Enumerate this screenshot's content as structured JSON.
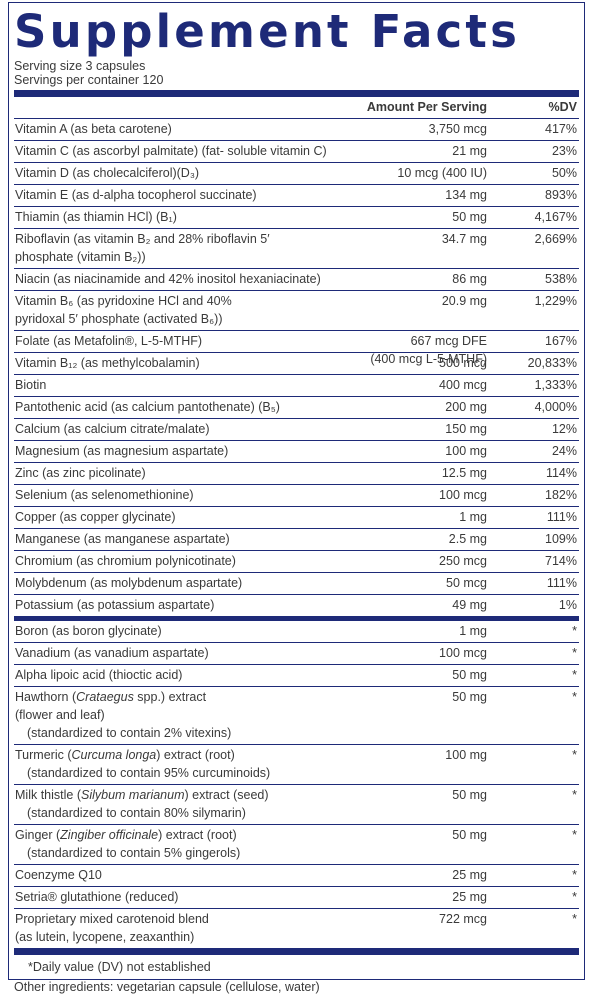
{
  "title": "Supplement Facts",
  "serving": [
    "Serving size  3 capsules",
    "Servings per container  120"
  ],
  "table": {
    "header": [
      "Amount Per Serving",
      "%DV"
    ],
    "groups": [
      [
        {
          "name": [
            "Vitamin A (as beta carotene)"
          ],
          "amount": "3,750 mcg",
          "dv": "417%"
        },
        {
          "name": [
            "Vitamin C (as ascorbyl palmitate) (fat- soluble vitamin C)"
          ],
          "amount": "21 mg",
          "dv": "23%"
        },
        {
          "name": [
            "Vitamin D (as cholecalciferol)(D₃)"
          ],
          "amount": "10 mcg (400 IU)",
          "dv": "50%"
        },
        {
          "name": [
            "Vitamin E (as d-alpha tocopherol succinate)"
          ],
          "amount": "134 mg",
          "dv": "893%"
        },
        {
          "name": [
            "Thiamin (as thiamin HCl) (B₁)"
          ],
          "amount": "50 mg",
          "dv": "4,167%"
        },
        {
          "name": [
            "Riboflavin (as vitamin B₂ and 28% riboflavin 5′",
            "phosphate (vitamin B₂))"
          ],
          "amount": "34.7 mg",
          "dv": "2,669%"
        },
        {
          "name": [
            "Niacin (as niacinamide and 42% inositol hexaniacinate)"
          ],
          "amount": "86 mg",
          "dv": "538%"
        },
        {
          "name": [
            "Vitamin B₆ (as pyridoxine HCl and 40%",
            "pyridoxal 5′ phosphate (activated B₆))"
          ],
          "amount": "20.9 mg",
          "dv": "1,229%"
        },
        {
          "name": [
            "Folate (as Metafolin®, L-5-MTHF)"
          ],
          "amount": [
            "667 mcg DFE",
            "(400 mcg L-5-MTHF)"
          ],
          "dv": "167%"
        },
        {
          "name": [
            "Vitamin B₁₂ (as methylcobalamin)"
          ],
          "amount": "500 mcg",
          "dv": "20,833%"
        },
        {
          "name": [
            "Biotin"
          ],
          "amount": "400 mcg",
          "dv": "1,333%"
        },
        {
          "name": [
            "Pantothenic acid (as calcium pantothenate) (B₅)"
          ],
          "amount": "200 mg",
          "dv": "4,000%"
        },
        {
          "name": [
            "Calcium (as calcium citrate/malate)"
          ],
          "amount": "150 mg",
          "dv": "12%"
        },
        {
          "name": [
            "Magnesium (as magnesium aspartate)"
          ],
          "amount": "100 mg",
          "dv": "24%"
        },
        {
          "name": [
            "Zinc (as zinc picolinate)"
          ],
          "amount": "12.5 mg",
          "dv": "114%"
        },
        {
          "name": [
            "Selenium (as selenomethionine)"
          ],
          "amount": "100 mcg",
          "dv": "182%"
        },
        {
          "name": [
            "Copper (as copper glycinate)"
          ],
          "amount": "1 mg",
          "dv": "111%"
        },
        {
          "name": [
            "Manganese (as manganese aspartate)"
          ],
          "amount": "2.5 mg",
          "dv": "109%"
        },
        {
          "name": [
            "Chromium (as chromium polynicotinate)"
          ],
          "amount": "250 mcg",
          "dv": "714%"
        },
        {
          "name": [
            "Molybdenum (as molybdenum aspartate)"
          ],
          "amount": "50 mcg",
          "dv": "111%"
        },
        {
          "name": [
            "Potassium (as potassium aspartate)"
          ],
          "amount": "49 mg",
          "dv": "1%"
        }
      ],
      [
        {
          "name": [
            "Boron (as boron glycinate)"
          ],
          "amount": "1 mg",
          "dv": "*"
        },
        {
          "name": [
            "Vanadium (as vanadium aspartate)"
          ],
          "amount": "100 mcg",
          "dv": "*"
        },
        {
          "name": [
            "Alpha lipoic acid (thioctic acid)"
          ],
          "amount": "50 mg",
          "dv": "*"
        },
        {
          "name": [
            [
              "Hawthorn (",
              {
                "text": "Crataegus",
                "italic": true
              },
              " spp.) extract"
            ],
            "(flower and leaf)",
            {
              "text": "(standardized to contain 2% vitexins)",
              "indent": true
            }
          ],
          "amount": "50 mg",
          "dv": "*"
        },
        {
          "name": [
            [
              "Turmeric (",
              {
                "text": "Curcuma longa",
                "italic": true
              },
              ") extract (root)"
            ],
            {
              "text": "(standardized to contain 95% curcuminoids)",
              "indent": true
            }
          ],
          "amount": "100 mg",
          "dv": "*"
        },
        {
          "name": [
            [
              "Milk thistle (",
              {
                "text": "Silybum marianum",
                "italic": true
              },
              ") extract (seed)"
            ],
            {
              "text": "(standardized to contain 80% silymarin)",
              "indent": true
            }
          ],
          "amount": "50 mg",
          "dv": "*"
        },
        {
          "name": [
            [
              "Ginger (",
              {
                "text": "Zingiber officinale",
                "italic": true
              },
              ") extract (root)"
            ],
            {
              "text": "(standardized to contain 5% gingerols)",
              "indent": true
            }
          ],
          "amount": "50 mg",
          "dv": "*"
        },
        {
          "name": [
            "Coenzyme Q10"
          ],
          "amount": "25 mg",
          "dv": "*"
        },
        {
          "name": [
            "Setria® glutathione (reduced)"
          ],
          "amount": "25 mg",
          "dv": "*"
        },
        {
          "name": [
            "Proprietary mixed carotenoid blend",
            "(as lutein, lycopene, zeaxanthin)"
          ],
          "amount": "722 mcg",
          "dv": "*"
        }
      ]
    ]
  },
  "footnote": "*Daily value (DV) not established",
  "other": "Other ingredients: vegetarian capsule (cellulose, water)"
}
